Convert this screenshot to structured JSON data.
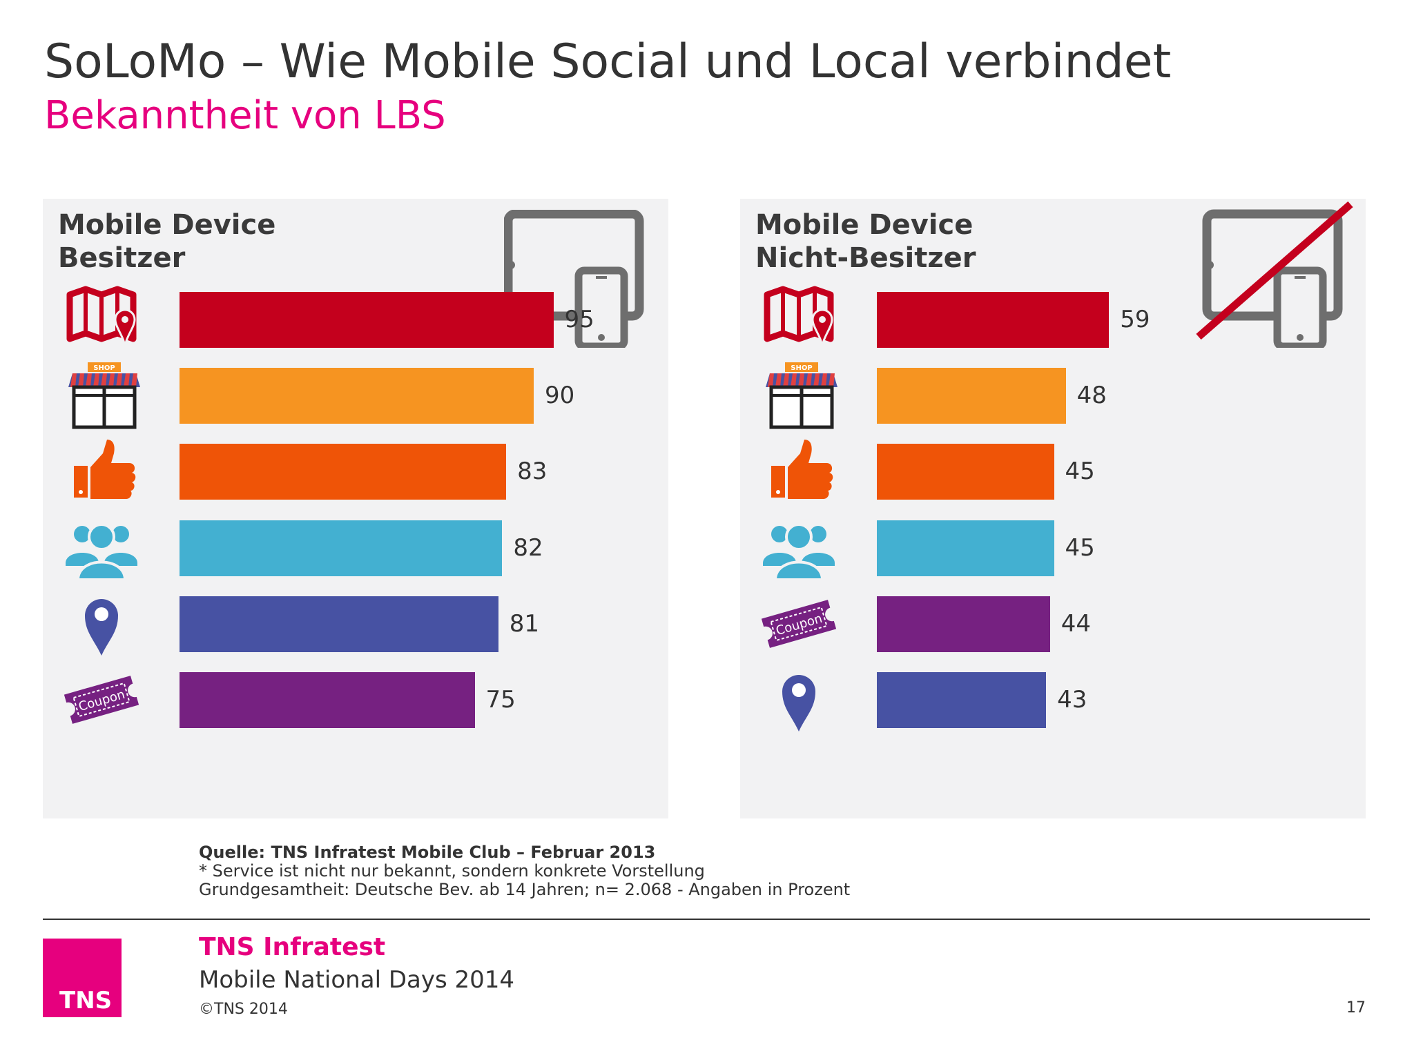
{
  "header": {
    "title": "SoLoMo – Wie Mobile Social und Local verbindet",
    "subtitle": "Bekanntheit von LBS"
  },
  "colors": {
    "red": "#c4001d",
    "yellow_orange": "#f69421",
    "orange": "#ef5407",
    "cyan": "#43b0d1",
    "blue": "#4752a3",
    "purple": "#762181",
    "accent": "#e6007e"
  },
  "icons": [
    "map-icon",
    "shop-icon",
    "thumbs-up-icon",
    "people-icon",
    "location-pin-icon",
    "coupon-icon",
    "tablet-phone-icon"
  ],
  "chart_data": [
    {
      "type": "bar",
      "orientation": "horizontal",
      "title_lines": [
        "Mobile Device",
        "Besitzer"
      ],
      "xlim": [
        0,
        100
      ],
      "categories": [
        "map-icon",
        "shop-icon",
        "thumbs-up-icon",
        "people-icon",
        "location-pin-icon",
        "coupon-icon"
      ],
      "values": [
        95,
        90,
        83,
        82,
        81,
        75
      ],
      "bar_colors": [
        "#c4001d",
        "#f69421",
        "#ef5407",
        "#43b0d1",
        "#4752a3",
        "#762181"
      ],
      "labels": [
        "95",
        "90",
        "83",
        "82",
        "81",
        "75"
      ]
    },
    {
      "type": "bar",
      "orientation": "horizontal",
      "title_lines": [
        "Mobile Device",
        "Nicht-Besitzer"
      ],
      "xlim": [
        0,
        100
      ],
      "categories": [
        "map-icon",
        "shop-icon",
        "thumbs-up-icon",
        "people-icon",
        "coupon-icon",
        "location-pin-icon"
      ],
      "values": [
        59,
        48,
        45,
        45,
        44,
        43
      ],
      "bar_colors": [
        "#c4001d",
        "#f69421",
        "#ef5407",
        "#43b0d1",
        "#762181",
        "#4752a3"
      ],
      "labels": [
        "59",
        "48",
        "45",
        "45",
        "44",
        "43"
      ]
    }
  ],
  "shop_sign": "SHOP",
  "coupon_text": "Coupon",
  "source": {
    "line1": "Quelle: TNS Infratest Mobile Club – Februar 2013",
    "line2": "* Service ist nicht nur bekannt, sondern konkrete Vorstellung",
    "line3": "Grundgesamtheit: Deutsche Bev. ab 14 Jahren; n= 2.068 - Angaben in Prozent"
  },
  "footer": {
    "logo_text": "TNS",
    "brand": "TNS Infratest",
    "event": "Mobile National Days 2014",
    "copyright": "©TNS 2014",
    "page_number": "17"
  }
}
